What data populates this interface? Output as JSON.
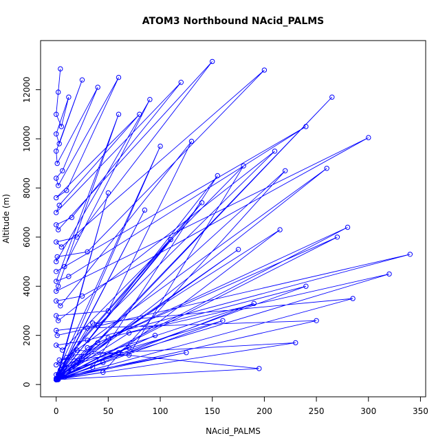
{
  "chart_data": {
    "type": "line",
    "title": "ATOM3 Northbound NAcid_PALMS",
    "xlabel": "NAcid_PALMS",
    "ylabel": "Altitude (m)",
    "xlim": [
      -15,
      355
    ],
    "ylim": [
      -500,
      14000
    ],
    "xticks": [
      0,
      50,
      100,
      150,
      200,
      250,
      300,
      350
    ],
    "yticks": [
      0,
      2000,
      4000,
      6000,
      8000,
      10000,
      12000
    ],
    "grid": false,
    "legend": "none",
    "marker": "open circle",
    "color": "#0000ff",
    "series": [
      {
        "x": [
          4,
          2,
          0,
          5,
          12,
          0,
          3,
          25,
          0,
          1,
          40,
          6,
          0,
          2,
          60,
          10,
          0,
          80,
          3,
          0,
          120,
          15,
          0,
          2,
          150,
          20,
          0,
          5,
          200,
          30,
          1,
          0,
          90,
          8,
          0,
          240,
          12,
          0,
          60,
          2,
          0,
          300,
          25,
          0,
          4,
          130,
          50,
          0,
          2,
          210,
          40,
          0,
          1,
          340,
          30,
          0,
          6,
          180,
          70,
          3,
          0,
          260,
          15,
          0,
          100,
          2,
          0,
          220,
          45,
          0,
          1,
          155,
          35,
          0,
          8,
          265,
          20,
          0,
          50,
          2,
          0,
          140,
          10,
          0,
          4,
          215,
          60,
          0,
          3,
          85,
          0,
          280,
          30,
          0,
          2,
          110,
          5,
          0,
          270,
          40,
          0,
          1,
          175,
          20,
          0,
          3,
          240,
          50,
          0,
          6,
          320,
          70,
          0,
          2,
          190,
          25,
          0,
          160,
          8,
          0,
          250,
          30,
          0,
          4,
          95,
          0,
          230,
          15,
          0,
          2,
          70,
          0,
          285,
          35,
          0,
          3,
          125,
          0,
          195,
          20,
          0,
          1,
          45
        ],
        "y": [
          12850,
          11900,
          11000,
          10500,
          11700,
          10200,
          9800,
          12400,
          9500,
          9000,
          12100,
          8700,
          8400,
          8100,
          12500,
          7900,
          7600,
          11000,
          7300,
          7000,
          12300,
          6800,
          6500,
          6300,
          13150,
          6000,
          5800,
          5600,
          12800,
          5400,
          5200,
          5000,
          11600,
          4800,
          4600,
          10500,
          4400,
          4200,
          11000,
          4000,
          3800,
          10050,
          3600,
          3400,
          3200,
          9900,
          3000,
          2800,
          2600,
          9500,
          2400,
          2200,
          2000,
          5300,
          1800,
          1600,
          1400,
          8900,
          1200,
          1000,
          800,
          8800,
          600,
          400,
          9700,
          300,
          250,
          8700,
          500,
          200,
          200,
          8500,
          700,
          200,
          300,
          11700,
          900,
          200,
          7800,
          400,
          200,
          7400,
          1100,
          200,
          600,
          6300,
          1300,
          200,
          400,
          7100,
          200,
          6400,
          1500,
          200,
          300,
          5900,
          800,
          200,
          6000,
          1700,
          200,
          250,
          5500,
          900,
          200,
          350,
          4000,
          1900,
          200,
          500,
          4500,
          2100,
          200,
          200,
          3300,
          1000,
          200,
          2600,
          700,
          200,
          2600,
          2300,
          200,
          300,
          2000,
          200,
          1700,
          1200,
          200,
          250,
          1500,
          200,
          3500,
          2500,
          200,
          300,
          1300,
          200,
          650,
          1400,
          200,
          200,
          900
        ]
      }
    ]
  }
}
